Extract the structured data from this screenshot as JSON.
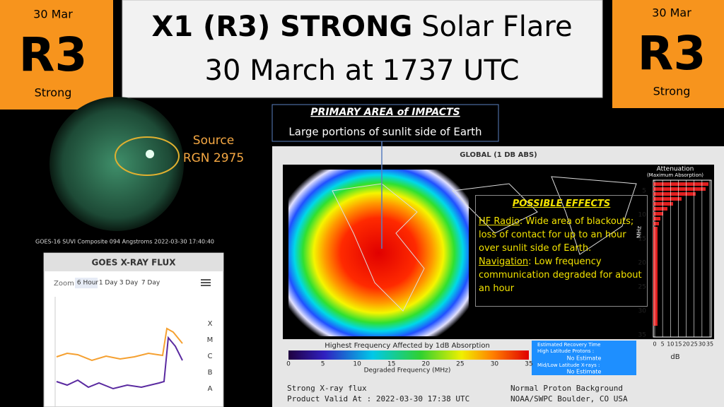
{
  "left_badge": {
    "date": "30 Mar",
    "level": "R3",
    "label": "Strong"
  },
  "right_badge": {
    "date": "30 Mar",
    "level": "R3",
    "label": "Strong"
  },
  "header": {
    "title_bold": "X1 (R3) STRONG",
    "title_rest": "Solar Flare",
    "subtitle": "30 March at 1737 UTC"
  },
  "sun_image": {
    "source_label": "Source",
    "region": "RGN 2975",
    "caption": "GOES-16 SUVI Composite 094 Angstroms 2022-03-30 17:40:40"
  },
  "impacts": {
    "title": "PRIMARY AREA of IMPACTS",
    "text": "Large portions of sunlit side of Earth"
  },
  "xray_panel": {
    "title": "GOES X-RAY FLUX",
    "zoom": "Zoom",
    "buttons": [
      "6 Hour",
      "1 Day",
      "3 Day",
      "7 Day"
    ],
    "classes": [
      "X",
      "M",
      "C",
      "B",
      "A"
    ]
  },
  "drap": {
    "title": "GLOBAL (1 DB ABS)",
    "attenuation_title": "Attenuation",
    "attenuation_subtitle": "(Maximum Absorption)",
    "mhz_ticks": [
      5,
      10,
      15,
      20,
      25,
      30,
      35
    ],
    "mhz_label": "MHz",
    "db_ticks": [
      0,
      5,
      10,
      15,
      20,
      25,
      30,
      35
    ],
    "db_label": "dB",
    "colorbar_title": "Highest Frequency Affected by 1dB Absorption",
    "colorbar_ticks": [
      0,
      5,
      10,
      15,
      20,
      25,
      30,
      35
    ],
    "colorbar_label": "Degraded Frequency (MHz)",
    "recovery": {
      "title": "Estimated Recovery Time",
      "high_label": "High Latitude Protons :",
      "high_value": "No Estimate",
      "low_label": "Mid/Low Latitude X-rays :",
      "low_value": "No Estimate"
    },
    "footer_left": [
      "Strong X-ray flux",
      "Product Valid At : 2022-03-30 17:38 UTC"
    ],
    "footer_right": [
      "Normal Proton Background",
      "NOAA/SWPC Boulder, CO USA"
    ]
  },
  "effects": {
    "title": "POSSIBLE EFFECTS",
    "hf_label": "HF Radio",
    "hf_text": ": Wide area of blackouts; loss of contact for up to an hour over sunlit side of Earth.",
    "nav_label": "Navigation",
    "nav_text": ": Low frequency communication degraded for about an hour"
  }
}
